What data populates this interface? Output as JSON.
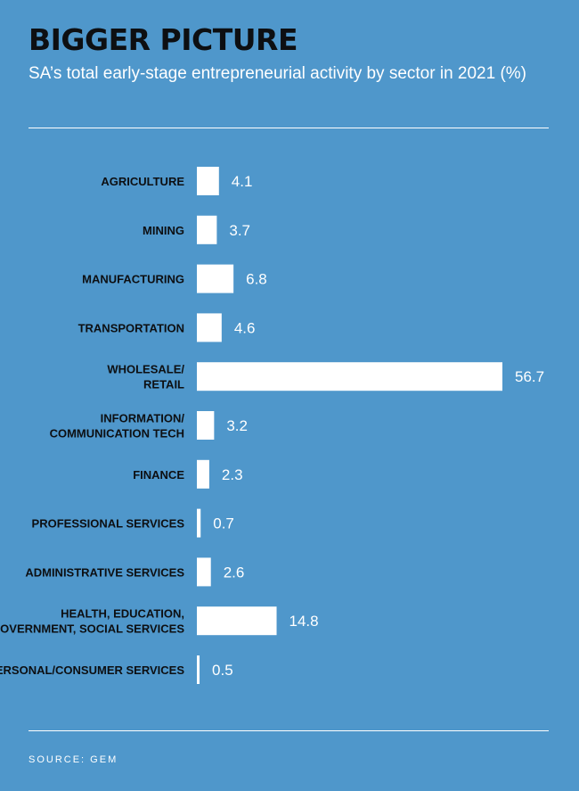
{
  "header": {
    "title": "BIGGER PICTURE",
    "subtitle": "SA’s total early-stage entrepreneurial activity by sector in 2021 (%)"
  },
  "footer": {
    "source": "SOURCE: GEM"
  },
  "colors": {
    "background": "#4f97cb",
    "bars": "#ffffff",
    "category_text": "#0d0f12",
    "value_text": "#ffffff"
  },
  "chart_data": {
    "type": "bar",
    "orientation": "horizontal",
    "title": "BIGGER PICTURE",
    "subtitle": "SA’s total early-stage entrepreneurial activity by sector in 2021 (%)",
    "categories": [
      [
        "AGRICULTURE"
      ],
      [
        "MINING"
      ],
      [
        "MANUFACTURING"
      ],
      [
        "TRANSPORTATION"
      ],
      [
        "WHOLESALE/",
        "RETAIL"
      ],
      [
        "INFORMATION/",
        "COMMUNICATION TECH"
      ],
      [
        "FINANCE"
      ],
      [
        "PROFESSIONAL SERVICES"
      ],
      [
        "ADMINISTRATIVE SERVICES"
      ],
      [
        "HEALTH, EDUCATION,",
        "GOVERNMENT, SOCIAL SERVICES"
      ],
      [
        "PERSONAL/CONSUMER SERVICES"
      ]
    ],
    "values": [
      4.1,
      3.7,
      6.8,
      4.6,
      56.7,
      3.2,
      2.3,
      0.7,
      2.6,
      14.8,
      0.5
    ],
    "value_labels": [
      "4.1",
      "3.7",
      "6.8",
      "4.6",
      "56.7",
      "3.2",
      "2.3",
      "0.7",
      "2.6",
      "14.8",
      "0.5"
    ],
    "xlim": [
      0,
      56.7
    ],
    "grid": false,
    "legend": "none"
  }
}
